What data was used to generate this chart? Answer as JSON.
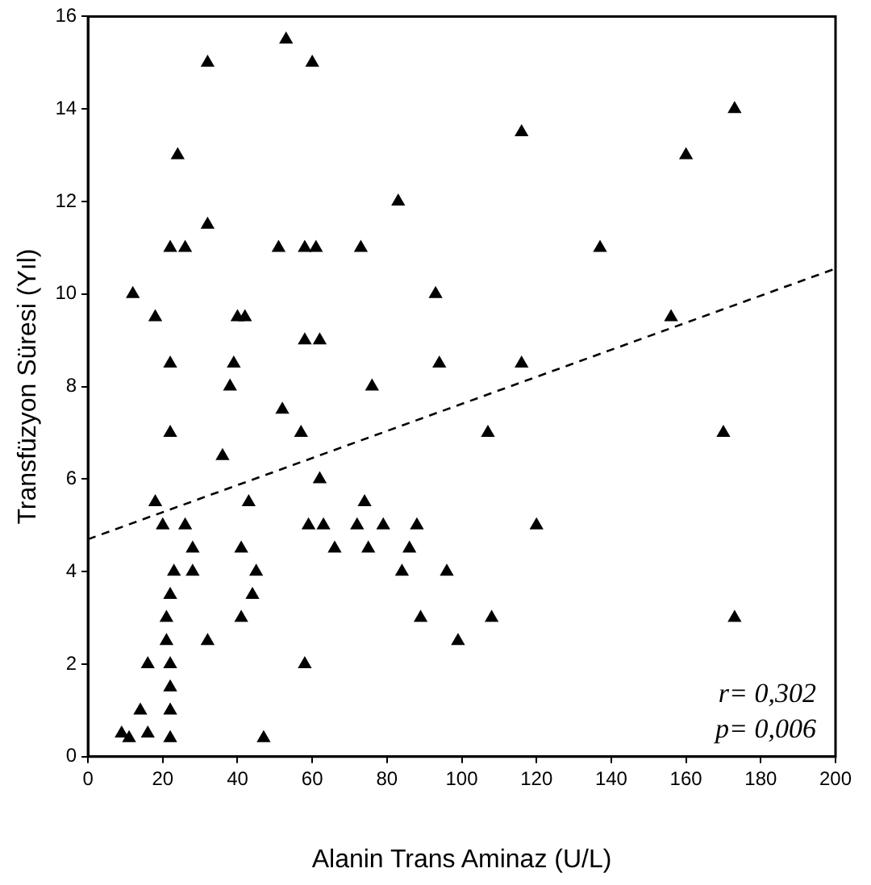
{
  "chart_data": {
    "type": "scatter",
    "xlabel": "Alanin Trans Aminaz (U/L)",
    "ylabel": "Transfüzyon Süresi (Yıl)",
    "xlim": [
      0,
      200
    ],
    "xticks": [
      0,
      20,
      40,
      60,
      80,
      100,
      120,
      140,
      160,
      180,
      200
    ],
    "ylim": [
      0,
      16
    ],
    "yticks": [
      0,
      2,
      4,
      6,
      8,
      10,
      12,
      14,
      16
    ],
    "grid": false,
    "legend": false,
    "marker": "triangle",
    "annotations": [
      "r= 0,302",
      "p= 0,006"
    ],
    "series": [
      {
        "color": "#000000",
        "x": [
          53,
          32,
          60,
          24,
          83,
          116,
          160,
          173,
          32,
          22,
          26,
          51,
          58,
          61,
          73,
          137,
          12,
          18,
          40,
          42,
          93,
          156,
          22,
          39,
          58,
          62,
          94,
          116,
          76,
          38,
          22,
          57,
          107,
          170,
          36,
          62,
          52,
          18,
          43,
          74,
          20,
          26,
          59,
          63,
          72,
          79,
          88,
          120,
          28,
          66,
          75,
          86,
          23,
          28,
          45,
          84,
          96,
          41,
          22,
          44,
          21,
          41,
          89,
          108,
          173,
          99,
          21,
          32,
          16,
          22,
          58,
          22,
          14,
          22,
          9,
          16,
          11,
          22,
          47
        ],
        "values": [
          15.5,
          15,
          15,
          13,
          12,
          13.5,
          13,
          14,
          11.5,
          11,
          11,
          11,
          11,
          11,
          11,
          11,
          10,
          9.5,
          9.5,
          9.5,
          10,
          9.5,
          8.5,
          8.5,
          9,
          9,
          8.5,
          8.5,
          8,
          8,
          7,
          7,
          7,
          7,
          6.5,
          6,
          7.5,
          5.5,
          5.5,
          5.5,
          5,
          5,
          5,
          5,
          5,
          5,
          5,
          5,
          4.5,
          4.5,
          4.5,
          4.5,
          4,
          4,
          4,
          4,
          4,
          4.5,
          3.5,
          3.5,
          3,
          3,
          3,
          3,
          3,
          2.5,
          2.5,
          2.5,
          2,
          2,
          2,
          1.5,
          1,
          1,
          0.5,
          0.5,
          0.4,
          0.4,
          0.4
        ]
      },
      {
        "type": "line",
        "color": "#000000",
        "marker": "none",
        "line_style": "dashed",
        "x": [
          0,
          200
        ],
        "values": [
          4.7,
          10.55
        ]
      }
    ]
  }
}
